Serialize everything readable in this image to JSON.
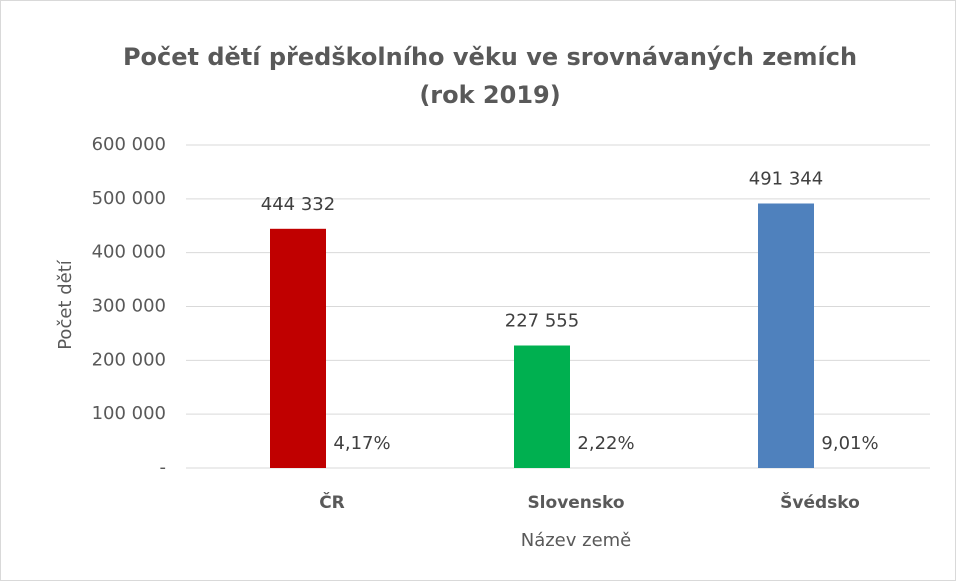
{
  "chart_data": {
    "type": "bar",
    "title": [
      "Počet dětí předškolního věku ve srovnávaných zemích",
      "(rok 2019)"
    ],
    "y_label": "Počet dětí",
    "x_label": "Název země",
    "categories": [
      "ČR",
      "Slovensko",
      "Švédsko"
    ],
    "series": [
      {
        "colors": [
          "#c00000",
          "#00b050",
          "#4f81bd"
        ],
        "values": [
          444332,
          227555,
          491344
        ],
        "value_labels": [
          "444 332",
          "227 555",
          "491 344"
        ]
      },
      {
        "color": "#ed7d31",
        "values": [
          4.17,
          2.22,
          9.01
        ],
        "value_labels": [
          "4,17%",
          "2,22%",
          "9,01%"
        ]
      }
    ],
    "ylim": [
      0,
      600000
    ],
    "yticks": [
      {
        "value": 0,
        "label": "-"
      },
      {
        "value": 100000,
        "label": "100 000"
      },
      {
        "value": 200000,
        "label": "200 000"
      },
      {
        "value": 300000,
        "label": "300 000"
      },
      {
        "value": 400000,
        "label": "400 000"
      },
      {
        "value": 500000,
        "label": "500 000"
      },
      {
        "value": 600000,
        "label": "600 000"
      }
    ],
    "grid": true
  }
}
